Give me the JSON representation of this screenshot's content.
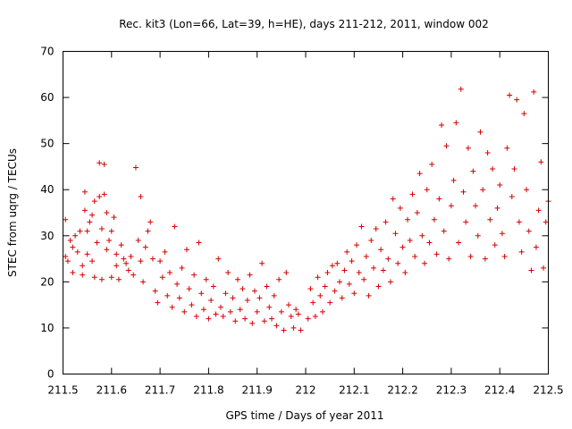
{
  "chart_data": {
    "type": "scatter",
    "title": "Rec. kit3 (Lon=66, Lat=39, h=HE), days 211-212, 2011, window 002",
    "xlabel": "GPS time / Days of year 2011",
    "ylabel": "STEC from uqrg / TECUs",
    "xlim": [
      211.5,
      212.5
    ],
    "ylim": [
      0,
      70
    ],
    "xticks": [
      211.5,
      211.6,
      211.7,
      211.8,
      211.9,
      212.0,
      212.1,
      212.2,
      212.3,
      212.4,
      212.5
    ],
    "xtick_labels": [
      "211.5",
      "211.6",
      "211.7",
      "211.8",
      "211.9",
      "212",
      "212.1",
      "212.2",
      "212.3",
      "212.4",
      "212.5"
    ],
    "yticks": [
      0,
      10,
      20,
      30,
      40,
      50,
      60,
      70
    ],
    "ytick_labels": [
      "0",
      "10",
      "20",
      "30",
      "40",
      "50",
      "60",
      "70"
    ],
    "marker": "+",
    "color": "#d40000",
    "grid": false,
    "series": [
      {
        "name": "STEC",
        "points": [
          [
            211.505,
            33.5
          ],
          [
            211.505,
            25.5
          ],
          [
            211.51,
            24.5
          ],
          [
            211.515,
            29.0
          ],
          [
            211.52,
            27.5
          ],
          [
            211.52,
            22.0
          ],
          [
            211.525,
            30.0
          ],
          [
            211.53,
            26.5
          ],
          [
            211.535,
            31.0
          ],
          [
            211.54,
            23.5
          ],
          [
            211.54,
            21.5
          ],
          [
            211.545,
            35.5
          ],
          [
            211.545,
            39.5
          ],
          [
            211.55,
            31.0
          ],
          [
            211.55,
            26.0
          ],
          [
            211.555,
            33.0
          ],
          [
            211.56,
            34.5
          ],
          [
            211.56,
            24.5
          ],
          [
            211.565,
            37.5
          ],
          [
            211.565,
            21.0
          ],
          [
            211.57,
            28.5
          ],
          [
            211.575,
            45.8
          ],
          [
            211.575,
            38.5
          ],
          [
            211.58,
            31.5
          ],
          [
            211.58,
            20.5
          ],
          [
            211.585,
            45.5
          ],
          [
            211.585,
            39.0
          ],
          [
            211.59,
            35.0
          ],
          [
            211.59,
            27.0
          ],
          [
            211.595,
            29.0
          ],
          [
            211.6,
            31.0
          ],
          [
            211.6,
            21.0
          ],
          [
            211.605,
            34.0
          ],
          [
            211.61,
            26.0
          ],
          [
            211.61,
            23.5
          ],
          [
            211.615,
            20.5
          ],
          [
            211.62,
            28.0
          ],
          [
            211.625,
            25.0
          ],
          [
            211.63,
            24.0
          ],
          [
            211.635,
            22.5
          ],
          [
            211.64,
            25.5
          ],
          [
            211.645,
            21.5
          ],
          [
            211.65,
            44.8
          ],
          [
            211.655,
            29.0
          ],
          [
            211.66,
            38.5
          ],
          [
            211.66,
            24.5
          ],
          [
            211.665,
            20.0
          ],
          [
            211.67,
            27.5
          ],
          [
            211.675,
            31.0
          ],
          [
            211.68,
            33.0
          ],
          [
            211.685,
            25.0
          ],
          [
            211.69,
            18.0
          ],
          [
            211.695,
            15.5
          ],
          [
            211.7,
            24.5
          ],
          [
            211.705,
            21.0
          ],
          [
            211.71,
            26.5
          ],
          [
            211.715,
            17.0
          ],
          [
            211.72,
            22.0
          ],
          [
            211.725,
            14.5
          ],
          [
            211.73,
            32.0
          ],
          [
            211.735,
            19.5
          ],
          [
            211.74,
            16.5
          ],
          [
            211.745,
            23.0
          ],
          [
            211.75,
            13.5
          ],
          [
            211.755,
            27.0
          ],
          [
            211.76,
            18.5
          ],
          [
            211.765,
            15.0
          ],
          [
            211.77,
            21.5
          ],
          [
            211.775,
            12.5
          ],
          [
            211.78,
            28.5
          ],
          [
            211.785,
            17.5
          ],
          [
            211.79,
            14.0
          ],
          [
            211.795,
            20.5
          ],
          [
            211.8,
            12.0
          ],
          [
            211.805,
            16.0
          ],
          [
            211.81,
            19.0
          ],
          [
            211.815,
            13.0
          ],
          [
            211.82,
            25.0
          ],
          [
            211.825,
            14.5
          ],
          [
            211.83,
            12.5
          ],
          [
            211.835,
            17.5
          ],
          [
            211.84,
            22.0
          ],
          [
            211.845,
            13.5
          ],
          [
            211.85,
            16.5
          ],
          [
            211.855,
            11.5
          ],
          [
            211.86,
            20.5
          ],
          [
            211.865,
            14.0
          ],
          [
            211.87,
            18.5
          ],
          [
            211.875,
            12.0
          ],
          [
            211.88,
            16.0
          ],
          [
            211.885,
            21.5
          ],
          [
            211.89,
            11.0
          ],
          [
            211.895,
            18.0
          ],
          [
            211.9,
            13.5
          ],
          [
            211.905,
            16.5
          ],
          [
            211.91,
            24.0
          ],
          [
            211.915,
            11.5
          ],
          [
            211.92,
            19.0
          ],
          [
            211.925,
            14.5
          ],
          [
            211.93,
            12.0
          ],
          [
            211.935,
            17.0
          ],
          [
            211.94,
            10.5
          ],
          [
            211.945,
            20.5
          ],
          [
            211.95,
            13.5
          ],
          [
            211.955,
            9.5
          ],
          [
            211.96,
            22.0
          ],
          [
            211.965,
            15.0
          ],
          [
            211.97,
            12.5
          ],
          [
            211.975,
            10.0
          ],
          [
            211.98,
            14.0
          ],
          [
            211.985,
            13.0
          ],
          [
            211.99,
            9.5
          ],
          [
            212.005,
            12.0
          ],
          [
            212.01,
            18.5
          ],
          [
            212.015,
            15.5
          ],
          [
            212.02,
            12.5
          ],
          [
            212.025,
            21.0
          ],
          [
            212.03,
            17.0
          ],
          [
            212.035,
            13.5
          ],
          [
            212.04,
            19.0
          ],
          [
            212.045,
            22.0
          ],
          [
            212.05,
            15.5
          ],
          [
            212.055,
            23.5
          ],
          [
            212.06,
            18.0
          ],
          [
            212.065,
            24.0
          ],
          [
            212.07,
            20.0
          ],
          [
            212.075,
            16.5
          ],
          [
            212.08,
            22.5
          ],
          [
            212.085,
            26.5
          ],
          [
            212.09,
            19.5
          ],
          [
            212.095,
            24.5
          ],
          [
            212.1,
            17.5
          ],
          [
            212.105,
            28.0
          ],
          [
            212.11,
            22.0
          ],
          [
            212.115,
            32.0
          ],
          [
            212.12,
            20.5
          ],
          [
            212.125,
            25.5
          ],
          [
            212.13,
            17.0
          ],
          [
            212.135,
            29.0
          ],
          [
            212.14,
            23.0
          ],
          [
            212.145,
            31.5
          ],
          [
            212.15,
            19.0
          ],
          [
            212.155,
            27.0
          ],
          [
            212.16,
            22.5
          ],
          [
            212.165,
            33.0
          ],
          [
            212.17,
            25.0
          ],
          [
            212.175,
            20.0
          ],
          [
            212.18,
            38.0
          ],
          [
            212.185,
            30.5
          ],
          [
            212.19,
            24.0
          ],
          [
            212.195,
            36.0
          ],
          [
            212.2,
            27.5
          ],
          [
            212.205,
            22.0
          ],
          [
            212.21,
            33.5
          ],
          [
            212.215,
            29.0
          ],
          [
            212.22,
            39.0
          ],
          [
            212.225,
            25.5
          ],
          [
            212.23,
            35.0
          ],
          [
            212.235,
            43.5
          ],
          [
            212.24,
            30.0
          ],
          [
            212.245,
            24.0
          ],
          [
            212.25,
            40.0
          ],
          [
            212.255,
            28.5
          ],
          [
            212.26,
            45.5
          ],
          [
            212.265,
            33.5
          ],
          [
            212.27,
            26.0
          ],
          [
            212.275,
            38.0
          ],
          [
            212.28,
            54.0
          ],
          [
            212.285,
            31.0
          ],
          [
            212.29,
            49.5
          ],
          [
            212.295,
            25.0
          ],
          [
            212.3,
            36.5
          ],
          [
            212.305,
            42.0
          ],
          [
            212.31,
            54.5
          ],
          [
            212.315,
            28.5
          ],
          [
            212.32,
            61.8
          ],
          [
            212.325,
            39.5
          ],
          [
            212.33,
            33.0
          ],
          [
            212.335,
            49.0
          ],
          [
            212.34,
            25.5
          ],
          [
            212.345,
            44.0
          ],
          [
            212.35,
            36.5
          ],
          [
            212.355,
            30.0
          ],
          [
            212.36,
            52.5
          ],
          [
            212.365,
            40.0
          ],
          [
            212.37,
            25.0
          ],
          [
            212.375,
            48.0
          ],
          [
            212.38,
            33.5
          ],
          [
            212.385,
            44.5
          ],
          [
            212.39,
            28.0
          ],
          [
            212.395,
            36.0
          ],
          [
            212.4,
            41.0
          ],
          [
            212.405,
            30.5
          ],
          [
            212.41,
            25.5
          ],
          [
            212.415,
            49.0
          ],
          [
            212.42,
            60.5
          ],
          [
            212.425,
            38.5
          ],
          [
            212.43,
            44.5
          ],
          [
            212.435,
            59.5
          ],
          [
            212.44,
            33.0
          ],
          [
            212.445,
            26.5
          ],
          [
            212.45,
            56.5
          ],
          [
            212.455,
            40.0
          ],
          [
            212.46,
            31.0
          ],
          [
            212.465,
            22.5
          ],
          [
            212.47,
            61.2
          ],
          [
            212.475,
            27.5
          ],
          [
            212.48,
            35.5
          ],
          [
            212.485,
            46.0
          ],
          [
            212.49,
            23.0
          ],
          [
            212.495,
            33.0
          ],
          [
            212.5,
            37.5
          ]
        ]
      }
    ]
  }
}
